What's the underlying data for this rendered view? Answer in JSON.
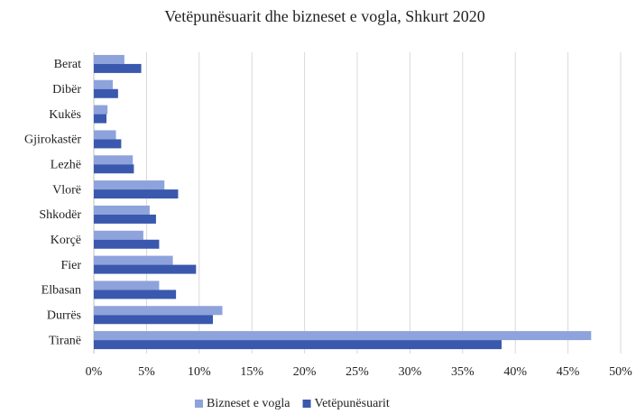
{
  "chart_data": {
    "type": "hbar",
    "title": "Vetëpunësuarit dhe bizneset e vogla, Shkurt 2020",
    "categories": [
      "Berat",
      "Dibër",
      "Kukës",
      "Gjirokastër",
      "Lezhë",
      "Vlorë",
      "Shkodër",
      "Korçë",
      "Fier",
      "Elbasan",
      "Durrës",
      "Tiranë"
    ],
    "series": [
      {
        "name": "Bizneset e vogla",
        "color": "#8ea3dc",
        "values": [
          2.9,
          1.8,
          1.3,
          2.1,
          3.7,
          6.7,
          5.3,
          4.7,
          7.5,
          6.2,
          12.2,
          47.2
        ]
      },
      {
        "name": "Vetëpunësuarit",
        "color": "#3a58ad",
        "values": [
          4.5,
          2.3,
          1.2,
          2.6,
          3.8,
          8.0,
          5.9,
          6.2,
          9.7,
          7.8,
          11.3,
          38.7
        ]
      }
    ],
    "xlim": [
      0,
      50
    ],
    "xticks": [
      {
        "value": 0,
        "label": "0%"
      },
      {
        "value": 5,
        "label": "5%"
      },
      {
        "value": 10,
        "label": "10%"
      },
      {
        "value": 15,
        "label": "15%"
      },
      {
        "value": 20,
        "label": "20%"
      },
      {
        "value": 25,
        "label": "25%"
      },
      {
        "value": 30,
        "label": "30%"
      },
      {
        "value": 35,
        "label": "35%"
      },
      {
        "value": 40,
        "label": "40%"
      },
      {
        "value": 45,
        "label": "45%"
      },
      {
        "value": 50,
        "label": "50%"
      }
    ],
    "grid": true,
    "legend": "bottom"
  }
}
